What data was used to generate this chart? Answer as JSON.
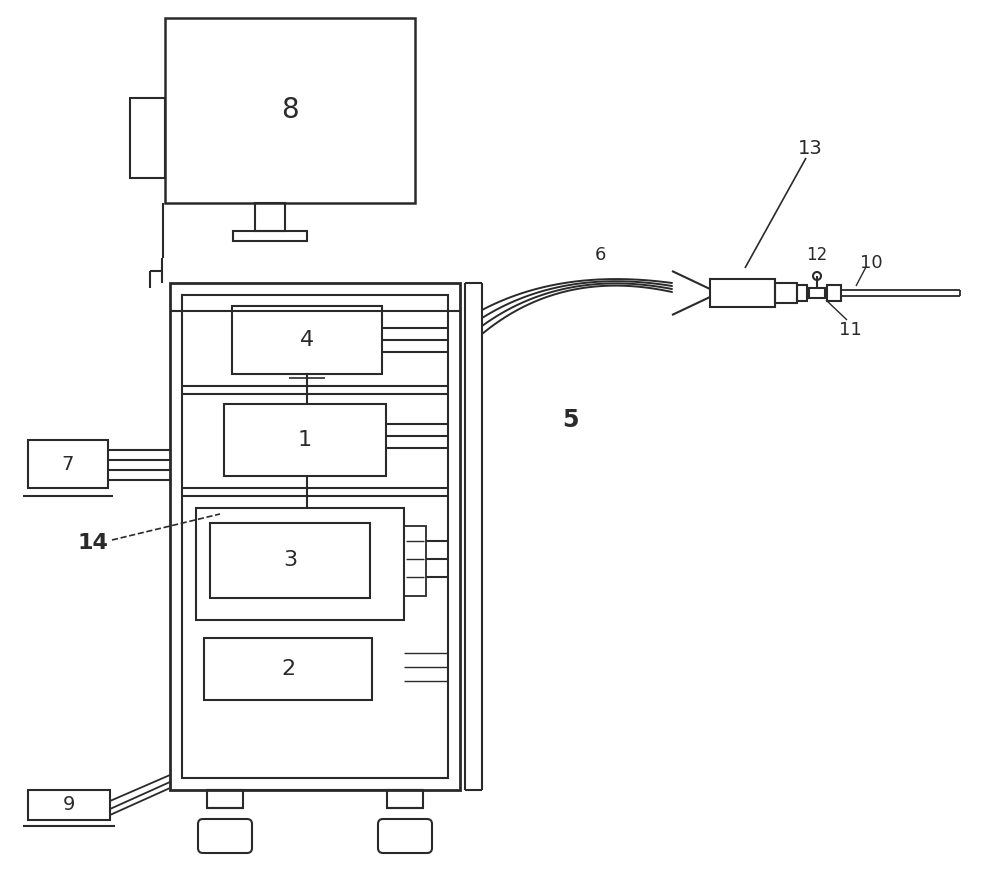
{
  "bg_color": "#ffffff",
  "line_color": "#2a2a2a",
  "fig_width": 10.0,
  "fig_height": 8.92
}
